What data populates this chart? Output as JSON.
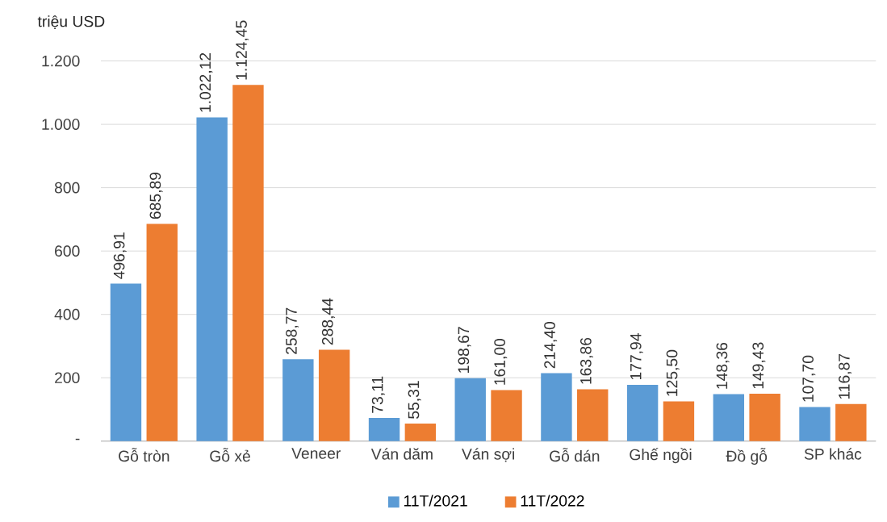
{
  "chart_data": {
    "type": "bar",
    "ylabel": "triệu USD",
    "categories": [
      "Gỗ tròn",
      "Gỗ xẻ",
      "Veneer",
      "Ván dăm",
      "Ván sợi",
      "Gỗ dán",
      "Ghế ngồi",
      "Đồ gỗ",
      "SP khác"
    ],
    "series": [
      {
        "name": "11T/2021",
        "color": "#5b9bd5",
        "values": [
          496.91,
          1022.12,
          258.77,
          73.11,
          198.67,
          214.4,
          177.94,
          148.36,
          107.7
        ],
        "value_labels": [
          "496,91",
          "1.022,12",
          "258,77",
          "73,11",
          "198,67",
          "214,40",
          "177,94",
          "148,36",
          "107,70"
        ]
      },
      {
        "name": "11T/2022",
        "color": "#ed7d31",
        "values": [
          685.89,
          1124.45,
          288.44,
          55.31,
          161.0,
          163.86,
          125.5,
          149.43,
          116.87
        ],
        "value_labels": [
          "685,89",
          "1.124,45",
          "288,44",
          "55,31",
          "161,00",
          "163,86",
          "125,50",
          "149,43",
          "116,87"
        ]
      }
    ],
    "ylim": [
      0,
      1200
    ],
    "yticks": [
      {
        "value": 0,
        "label": "-"
      },
      200,
      400,
      600,
      800,
      {
        "value": 1000,
        "label": "1.000"
      },
      {
        "value": 1200,
        "label": "1.200"
      }
    ],
    "grid": "y",
    "legend": "bottom"
  }
}
